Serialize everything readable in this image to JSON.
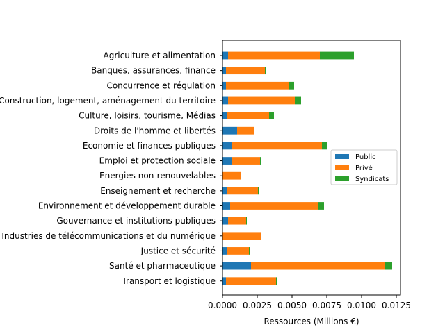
{
  "chart_data": {
    "type": "bar",
    "orientation": "horizontal",
    "stacked": true,
    "xlabel": "Ressources (Millions €)",
    "ylabel": "",
    "xlim": [
      0,
      0.0128
    ],
    "xticks": [
      0.0,
      0.0025,
      0.005,
      0.0075,
      0.01,
      0.0125
    ],
    "xtick_labels": [
      "0.0000",
      "0.0025",
      "0.0050",
      "0.0075",
      "0.0100",
      "0.0125"
    ],
    "grid": false,
    "legend_position": "center-right",
    "categories": [
      "Agriculture et alimentation",
      "Banques, assurances, finance",
      "Concurrence et régulation",
      "Construction, logement, aménagement du territoire",
      "Culture, loisirs, tourisme, Médias",
      "Droits de l'homme et libertés",
      "Economie et finances publiques",
      "Emploi et protection sociale",
      "Energies non-renouvelables",
      "Enseignement et recherche",
      "Environnement et développement durable",
      "Gouvernance et institutions publiques",
      "Industries de télécommunications et du numérique",
      "Justice et sécurité",
      "Santé et pharmaceutique",
      "Transport et logistique"
    ],
    "series": [
      {
        "name": "Public",
        "color": "#1f77b4",
        "values": [
          0.0004,
          0.00025,
          0.00025,
          0.0004,
          0.0003,
          0.00105,
          0.00065,
          0.0007,
          0.0,
          0.00035,
          0.00055,
          0.0004,
          0.0,
          0.0003,
          0.00205,
          0.00025
        ]
      },
      {
        "name": "Privé",
        "color": "#ff7f0e",
        "values": [
          0.0066,
          0.0028,
          0.00455,
          0.0048,
          0.00305,
          0.0012,
          0.0065,
          0.002,
          0.00135,
          0.0022,
          0.00635,
          0.0013,
          0.0028,
          0.0016,
          0.00965,
          0.0036
        ]
      },
      {
        "name": "Syndicats",
        "color": "#2ca02c",
        "values": [
          0.00245,
          5e-05,
          0.00035,
          0.00045,
          0.00035,
          5e-05,
          0.0004,
          0.0001,
          0.0,
          0.0001,
          0.0004,
          5e-05,
          0.0,
          5e-05,
          0.0005,
          0.0001
        ]
      }
    ]
  }
}
